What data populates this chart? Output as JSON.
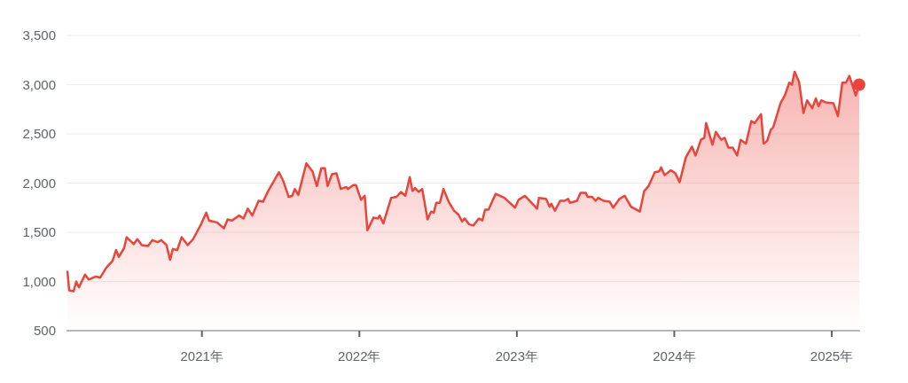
{
  "chart_data": {
    "type": "area",
    "xlim": [
      2020.14,
      2025.18
    ],
    "ylim": [
      500,
      3500
    ],
    "xticks": [
      {
        "value": 2021,
        "label": "2021年"
      },
      {
        "value": 2022,
        "label": "2022年"
      },
      {
        "value": 2023,
        "label": "2023年"
      },
      {
        "value": 2024,
        "label": "2024年"
      },
      {
        "value": 2025,
        "label": "2025年"
      }
    ],
    "yticks": [
      {
        "value": 500,
        "label": "500"
      },
      {
        "value": 1000,
        "label": "1,000"
      },
      {
        "value": 1500,
        "label": "1,500"
      },
      {
        "value": 2000,
        "label": "2,000"
      },
      {
        "value": 2500,
        "label": "2,500"
      },
      {
        "value": 3000,
        "label": "3,000"
      },
      {
        "value": 3500,
        "label": "3,500"
      }
    ],
    "grid": "y",
    "series": [
      {
        "color": "#e8453c",
        "x": [
          2020.146,
          2020.157,
          2020.185,
          2020.202,
          2020.219,
          2020.258,
          2020.281,
          2020.326,
          2020.354,
          2020.393,
          2020.433,
          2020.455,
          2020.472,
          2020.506,
          2020.522,
          2020.567,
          2020.59,
          2020.618,
          2020.657,
          2020.685,
          2020.719,
          2020.742,
          2020.775,
          2020.798,
          2020.815,
          2020.843,
          2020.871,
          2020.91,
          2020.944,
          2020.994,
          2021.028,
          2021.045,
          2021.096,
          2021.14,
          2021.163,
          2021.191,
          2021.236,
          2021.264,
          2021.292,
          2021.32,
          2021.36,
          2021.388,
          2021.421,
          2021.489,
          2021.517,
          2021.551,
          2021.573,
          2021.59,
          2021.612,
          2021.663,
          2021.702,
          2021.73,
          2021.758,
          2021.781,
          2021.798,
          2021.826,
          2021.854,
          2021.882,
          2021.916,
          2021.927,
          2021.961,
          2021.978,
          2022.011,
          2022.034,
          2022.051,
          2022.09,
          2022.118,
          2022.129,
          2022.152,
          2022.202,
          2022.236,
          2022.264,
          2022.292,
          2022.32,
          2022.337,
          2022.354,
          2022.376,
          2022.399,
          2022.433,
          2022.455,
          2022.472,
          2022.489,
          2022.511,
          2022.534,
          2022.567,
          2022.601,
          2022.629,
          2022.652,
          2022.669,
          2022.697,
          2022.725,
          2022.758,
          2022.781,
          2022.798,
          2022.82,
          2022.865,
          2022.921,
          2022.989,
          2023.011,
          2023.051,
          2023.129,
          2023.14,
          2023.185,
          2023.208,
          2023.219,
          2023.242,
          2023.275,
          2023.303,
          2023.326,
          2023.337,
          2023.382,
          2023.404,
          2023.438,
          2023.449,
          2023.478,
          2023.5,
          2023.517,
          2023.551,
          2023.59,
          2023.612,
          2023.652,
          2023.685,
          2023.725,
          2023.781,
          2023.809,
          2023.837,
          2023.876,
          2023.904,
          2023.916,
          2023.938,
          2023.978,
          2024.006,
          2024.034,
          2024.073,
          2024.112,
          2024.135,
          2024.169,
          2024.191,
          2024.202,
          2024.242,
          2024.264,
          2024.298,
          2024.32,
          2024.343,
          2024.371,
          2024.399,
          2024.421,
          2024.455,
          2024.489,
          2024.511,
          2024.551,
          2024.567,
          2024.59,
          2024.612,
          2024.629,
          2024.674,
          2024.702,
          2024.73,
          2024.747,
          2024.764,
          2024.792,
          2024.82,
          2024.843,
          2024.876,
          2024.899,
          2024.916,
          2024.933,
          2024.961,
          2025.011,
          2025.039,
          2025.067,
          2025.09,
          2025.112,
          2025.152,
          2025.174
        ],
        "values": [
          1100,
          910,
          900,
          1000,
          940,
          1070,
          1020,
          1050,
          1040,
          1140,
          1210,
          1320,
          1250,
          1340,
          1450,
          1380,
          1430,
          1370,
          1360,
          1420,
          1400,
          1420,
          1370,
          1220,
          1330,
          1320,
          1450,
          1370,
          1430,
          1580,
          1700,
          1620,
          1600,
          1540,
          1630,
          1620,
          1670,
          1640,
          1740,
          1670,
          1820,
          1810,
          1920,
          2110,
          2020,
          1860,
          1870,
          1940,
          1880,
          2200,
          2120,
          1970,
          2150,
          2150,
          1970,
          2090,
          2100,
          1940,
          1960,
          1940,
          1980,
          1980,
          1830,
          1870,
          1520,
          1650,
          1640,
          1670,
          1590,
          1850,
          1860,
          1910,
          1870,
          2060,
          1920,
          1950,
          1910,
          1940,
          1630,
          1710,
          1700,
          1800,
          1800,
          1940,
          1810,
          1720,
          1680,
          1610,
          1640,
          1580,
          1570,
          1640,
          1620,
          1730,
          1730,
          1890,
          1850,
          1750,
          1830,
          1870,
          1740,
          1850,
          1840,
          1760,
          1790,
          1720,
          1820,
          1820,
          1840,
          1800,
          1820,
          1900,
          1900,
          1860,
          1860,
          1820,
          1850,
          1820,
          1810,
          1750,
          1840,
          1870,
          1760,
          1710,
          1920,
          1970,
          2110,
          2120,
          2160,
          2080,
          2130,
          2100,
          2010,
          2260,
          2370,
          2280,
          2440,
          2460,
          2610,
          2390,
          2520,
          2440,
          2460,
          2360,
          2360,
          2280,
          2440,
          2400,
          2630,
          2610,
          2700,
          2400,
          2430,
          2540,
          2570,
          2810,
          2890,
          3020,
          3000,
          3130,
          3030,
          2710,
          2840,
          2760,
          2860,
          2780,
          2840,
          2820,
          2810,
          2680,
          3020,
          3020,
          3090,
          2890,
          3000
        ]
      },
      {
        "type": "scatter",
        "color": "#e8453c",
        "marker": "circle",
        "x": [
          2025.174
        ],
        "values": [
          3000
        ]
      }
    ]
  }
}
